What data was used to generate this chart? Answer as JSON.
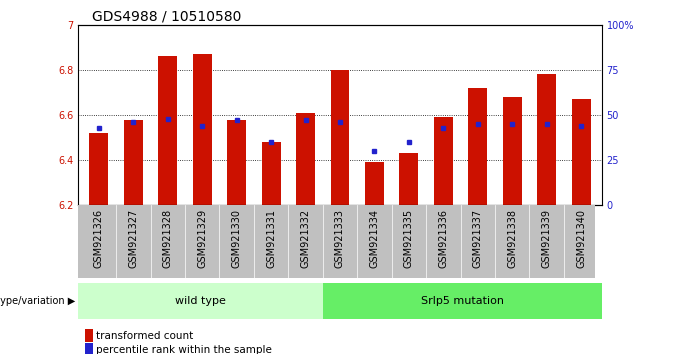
{
  "title": "GDS4988 / 10510580",
  "samples": [
    "GSM921326",
    "GSM921327",
    "GSM921328",
    "GSM921329",
    "GSM921330",
    "GSM921331",
    "GSM921332",
    "GSM921333",
    "GSM921334",
    "GSM921335",
    "GSM921336",
    "GSM921337",
    "GSM921338",
    "GSM921339",
    "GSM921340"
  ],
  "red_values": [
    6.52,
    6.58,
    6.86,
    6.87,
    6.58,
    6.48,
    6.61,
    6.8,
    6.39,
    6.43,
    6.59,
    6.72,
    6.68,
    6.78,
    6.67
  ],
  "blue_percentiles": [
    43,
    46,
    48,
    44,
    47,
    35,
    47,
    46,
    30,
    35,
    43,
    45,
    45,
    45,
    44
  ],
  "ymin": 6.2,
  "ymax": 7.0,
  "yticks": [
    6.2,
    6.4,
    6.6,
    6.8,
    7.0
  ],
  "ytick_labels": [
    "6.2",
    "6.4",
    "6.6",
    "6.8",
    "7"
  ],
  "right_yticks": [
    0,
    25,
    50,
    75,
    100
  ],
  "right_ytick_labels": [
    "0",
    "25",
    "50",
    "75",
    "100%"
  ],
  "bar_bottom": 6.2,
  "red_color": "#cc1100",
  "blue_color": "#2222cc",
  "n_wild": 7,
  "n_srfp5": 8,
  "wild_type_label": "wild type",
  "srfp5_label": "Srlp5 mutation",
  "genotype_label": "genotype/variation",
  "legend_red": "transformed count",
  "legend_blue": "percentile rank within the sample",
  "bg_plot": "#ffffff",
  "bg_xtick": "#c0c0c0",
  "bg_wildtype": "#ccffcc",
  "bg_srfp5": "#66ee66",
  "grid_color": "#000000",
  "bar_width": 0.55,
  "title_fontsize": 10,
  "tick_fontsize": 7,
  "label_fontsize": 8
}
